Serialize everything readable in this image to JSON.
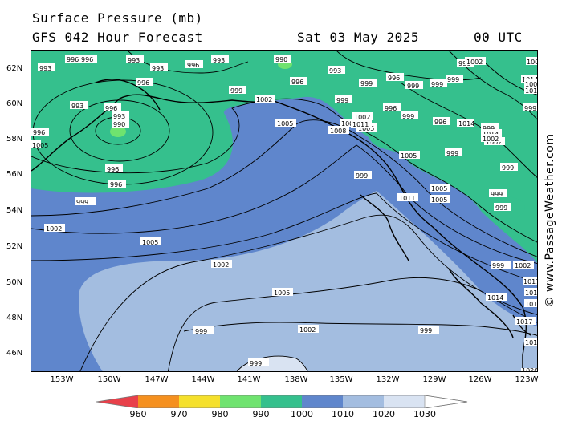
{
  "header": {
    "title": "Surface Pressure (mb)",
    "subtitle": "GFS 042 Hour Forecast",
    "valid_date": "Sat 03 May 2025",
    "valid_time": "00 UTC"
  },
  "watermark": "© www.PassageWeather.com",
  "axes": {
    "lat_labels": [
      "62N",
      "60N",
      "58N",
      "56N",
      "54N",
      "52N",
      "50N",
      "48N",
      "46N"
    ],
    "lon_labels": [
      "153W",
      "150W",
      "147W",
      "144W",
      "141W",
      "138W",
      "135W",
      "132W",
      "129W",
      "126W",
      "123W"
    ]
  },
  "legend": {
    "values": [
      "960",
      "970",
      "980",
      "990",
      "1000",
      "1010",
      "1020",
      "1030"
    ],
    "colors": [
      "#e8404a",
      "#f5901f",
      "#f5e02c",
      "#6fe36f",
      "#35c08d",
      "#5f86cc",
      "#a3bde0",
      "#d9e3f2",
      "#ffffff"
    ]
  },
  "map": {
    "colors": {
      "land_bg": "#35c08d",
      "band_1000_1010": "#5f86cc",
      "band_1010_1020": "#a3bde0",
      "band_1020_1030": "#d9e3f2",
      "low_990": "#6fe36f"
    },
    "contour_labels": [
      "993",
      "996",
      "993",
      "993",
      "996",
      "993",
      "990",
      "993",
      "996",
      "999",
      "996",
      "996",
      "999",
      "999",
      "996",
      "1002",
      "999",
      "999",
      "999",
      "999",
      "1002",
      "1005",
      "999",
      "1002",
      "996",
      "999",
      "999",
      "999",
      "996",
      "999",
      "999",
      "1005",
      "1002",
      "993",
      "996",
      "993",
      "990",
      "996",
      "996",
      "996",
      "999",
      "1002",
      "1005",
      "1002",
      "1005",
      "999",
      "1002",
      "999",
      "999",
      "999",
      "1002",
      "1005",
      "1005",
      "1011",
      "1008",
      "1011",
      "1014",
      "1017",
      "1017",
      "1017",
      "1020",
      "1008",
      "1005",
      "1005",
      "1011",
      "1014",
      "1014",
      "1011",
      "1014",
      "1005",
      "1002",
      "999",
      "996",
      "1002",
      "1014"
    ]
  }
}
